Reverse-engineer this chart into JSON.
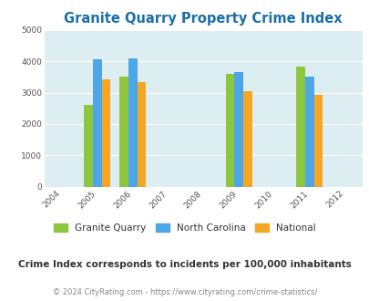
{
  "title": "Granite Quarry Property Crime Index",
  "years": [
    2005,
    2006,
    2009,
    2011
  ],
  "x_ticks": [
    2004,
    2005,
    2006,
    2007,
    2008,
    2009,
    2010,
    2011,
    2012
  ],
  "granite_quarry": [
    2600,
    3500,
    3600,
    3830
  ],
  "north_carolina": [
    4080,
    4100,
    3650,
    3520
  ],
  "national": [
    3430,
    3330,
    3050,
    2920
  ],
  "color_gq": "#8dc63f",
  "color_nc": "#4da6e8",
  "color_nat": "#f5a623",
  "bg_color": "#ddeef2",
  "title_color": "#1a6fad",
  "ylim": [
    0,
    5000
  ],
  "yticks": [
    0,
    1000,
    2000,
    3000,
    4000,
    5000
  ],
  "bar_width": 0.25,
  "legend_labels": [
    "Granite Quarry",
    "North Carolina",
    "National"
  ],
  "subtitle": "Crime Index corresponds to incidents per 100,000 inhabitants",
  "footer": "© 2024 CityRating.com - https://www.cityrating.com/crime-statistics/"
}
